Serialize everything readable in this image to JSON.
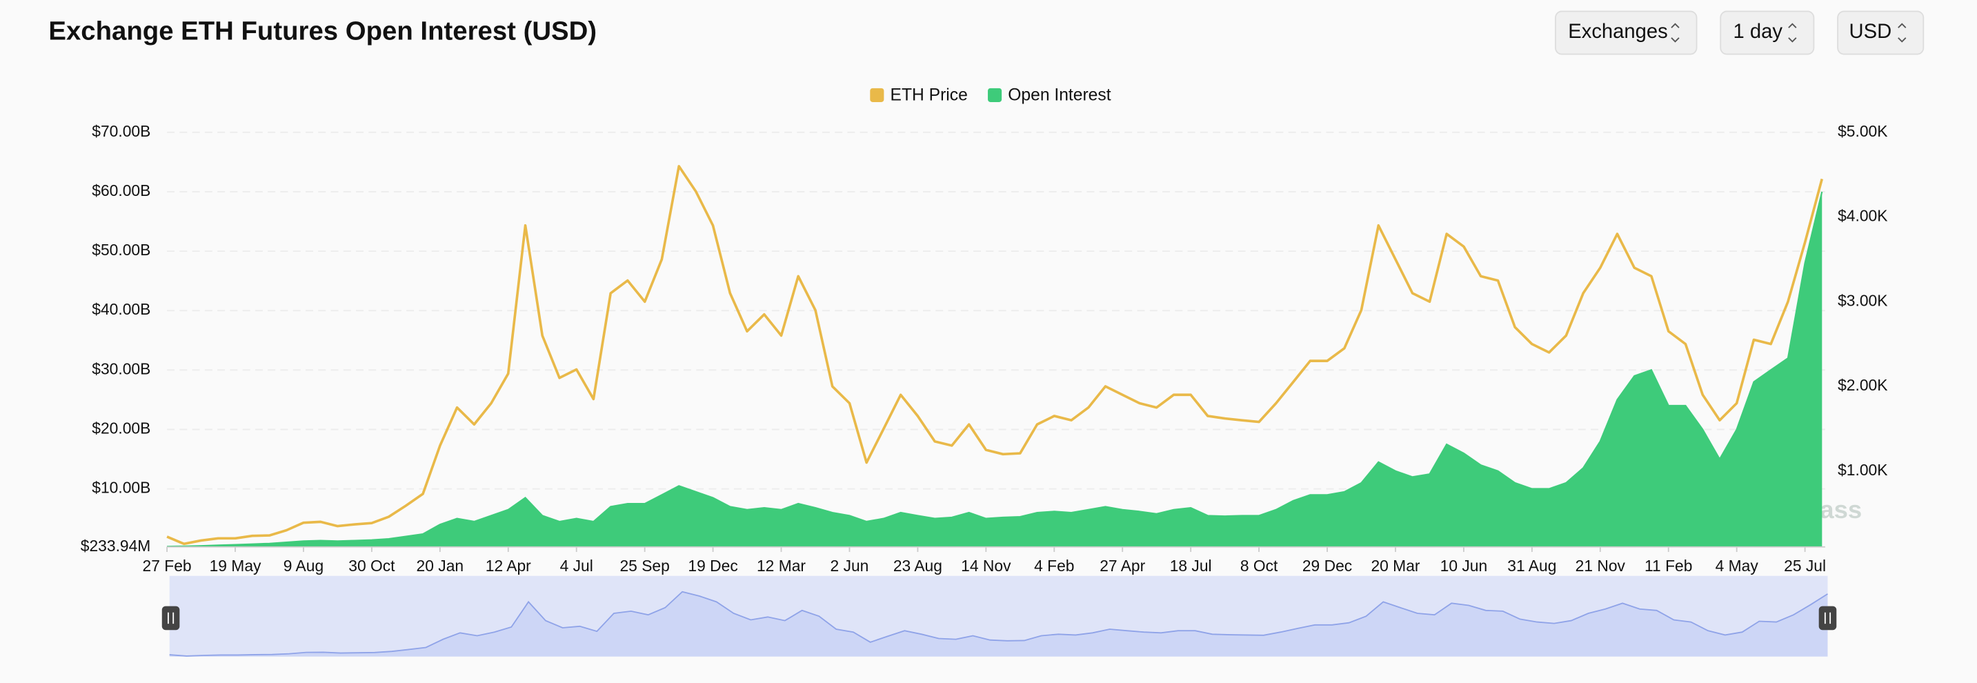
{
  "controls": [
    "Exchanges",
    "1 day",
    "USD"
  ],
  "chart_data": {
    "type": "line",
    "title": "Exchange ETH Futures Open Interest (USD)",
    "watermark": "coinglass",
    "categories": [
      "27 Feb",
      null,
      null,
      null,
      "19 May",
      null,
      null,
      null,
      "9 Aug",
      null,
      null,
      null,
      "30 Oct",
      null,
      null,
      null,
      "20 Jan",
      null,
      null,
      null,
      "12 Apr",
      null,
      null,
      null,
      "4 Jul",
      null,
      null,
      null,
      "25 Sep",
      null,
      null,
      null,
      "19 Dec",
      null,
      null,
      null,
      "12 Mar",
      null,
      null,
      null,
      "2 Jun",
      null,
      null,
      null,
      "23 Aug",
      null,
      null,
      null,
      "14 Nov",
      null,
      null,
      null,
      "4 Feb",
      null,
      null,
      null,
      "27 Apr",
      null,
      null,
      null,
      "18 Jul",
      null,
      null,
      null,
      "8 Oct",
      null,
      null,
      null,
      "29 Dec",
      null,
      null,
      null,
      "20 Mar",
      null,
      null,
      null,
      "10 Jun",
      null,
      null,
      null,
      "31 Aug",
      null,
      null,
      null,
      "21 Nov",
      null,
      null,
      null,
      "11 Feb",
      null,
      null,
      null,
      "4 May",
      null,
      null,
      null,
      "25 Jul",
      null
    ],
    "series": [
      {
        "name": "ETH Price",
        "color": "#e9b949",
        "axis": "y2",
        "style": "line",
        "values": [
          225,
          140,
          180,
          205,
          205,
          235,
          240,
          300,
          390,
          400,
          350,
          370,
          385,
          460,
          590,
          730,
          1300,
          1750,
          1550,
          1800,
          2150,
          3900,
          2600,
          2100,
          2200,
          1850,
          3100,
          3250,
          3000,
          3500,
          4600,
          4300,
          3900,
          3100,
          2650,
          2850,
          2600,
          3300,
          2900,
          2000,
          1800,
          1100,
          1500,
          1900,
          1650,
          1350,
          1300,
          1550,
          1250,
          1200,
          1210,
          1550,
          1650,
          1600,
          1750,
          2000,
          1900,
          1800,
          1750,
          1900,
          1900,
          1650,
          1620,
          1600,
          1580,
          1800,
          2050,
          2300,
          2300,
          2450,
          2900,
          3900,
          3500,
          3100,
          3000,
          3800,
          3650,
          3300,
          3250,
          2700,
          2500,
          2400,
          2600,
          3100,
          3400,
          3800,
          3400,
          3300,
          2650,
          2500,
          1900,
          1600,
          1800,
          2550,
          2500,
          3000,
          3700,
          4450
        ]
      },
      {
        "name": "Open Interest",
        "color": "#3ecb7a",
        "style": "area",
        "values": [
          300000000.0,
          350000000.0,
          400000000.0,
          500000000.0,
          600000000.0,
          700000000.0,
          800000000.0,
          1000000000.0,
          1200000000.0,
          1300000000.0,
          1200000000.0,
          1300000000.0,
          1400000000.0,
          1600000000.0,
          2000000000.0,
          2400000000.0,
          4000000000.0,
          5000000000.0,
          4500000000.0,
          5500000000.0,
          6500000000.0,
          8500000000.0,
          5500000000.0,
          4500000000.0,
          5000000000.0,
          4500000000.0,
          7000000000.0,
          7500000000.0,
          7500000000.0,
          9000000000.0,
          10500000000.0,
          9500000000.0,
          8500000000.0,
          7000000000.0,
          6500000000.0,
          6800000000.0,
          6500000000.0,
          7500000000.0,
          6800000000.0,
          6000000000.0,
          5500000000.0,
          4500000000.0,
          5000000000.0,
          6000000000.0,
          5500000000.0,
          5000000000.0,
          5200000000.0,
          6000000000.0,
          5000000000.0,
          5200000000.0,
          5300000000.0,
          6000000000.0,
          6200000000.0,
          6000000000.0,
          6500000000.0,
          7000000000.0,
          6500000000.0,
          6200000000.0,
          5800000000.0,
          6500000000.0,
          6800000000.0,
          5500000000.0,
          5400000000.0,
          5500000000.0,
          5500000000.0,
          6500000000.0,
          8000000000.0,
          9000000000.0,
          9000000000.0,
          9500000000.0,
          11000000000.0,
          14500000000.0,
          13000000000.0,
          12000000000.0,
          12500000000.0,
          17500000000.0,
          16000000000.0,
          14000000000.0,
          13000000000.0,
          11000000000.0,
          10000000000.0,
          10000000000.0,
          11000000000.0,
          13500000000.0,
          18000000000.0,
          25000000000.0,
          29000000000.0,
          30000000000.0,
          24000000000.0,
          24000000000.0,
          20000000000.0,
          15000000000.0,
          20000000000.0,
          28000000000.0,
          30000000000.0,
          32000000000.0,
          48000000000.0,
          60000000000.0
        ]
      }
    ],
    "ylim": [
      233940000,
      70000000000
    ],
    "yticks": [
      {
        "value": 233940000,
        "label": "$233.94M"
      },
      {
        "value": 10000000000,
        "label": "$10.00B"
      },
      {
        "value": 20000000000,
        "label": "$20.00B"
      },
      {
        "value": 30000000000,
        "label": "$30.00B"
      },
      {
        "value": 40000000000,
        "label": "$40.00B"
      },
      {
        "value": 50000000000,
        "label": "$50.00B"
      },
      {
        "value": 60000000000,
        "label": "$60.00B"
      },
      {
        "value": 70000000000,
        "label": "$70.00B"
      }
    ],
    "y2lim": [
      104,
      5000
    ],
    "y2ticks": [
      {
        "value": 1000,
        "label": "$1.00K"
      },
      {
        "value": 2000,
        "label": "$2.00K"
      },
      {
        "value": 3000,
        "label": "$3.00K"
      },
      {
        "value": 4000,
        "label": "$4.00K"
      },
      {
        "value": 5000,
        "label": "$5.00K"
      }
    ],
    "grid": true,
    "legend": "top"
  }
}
